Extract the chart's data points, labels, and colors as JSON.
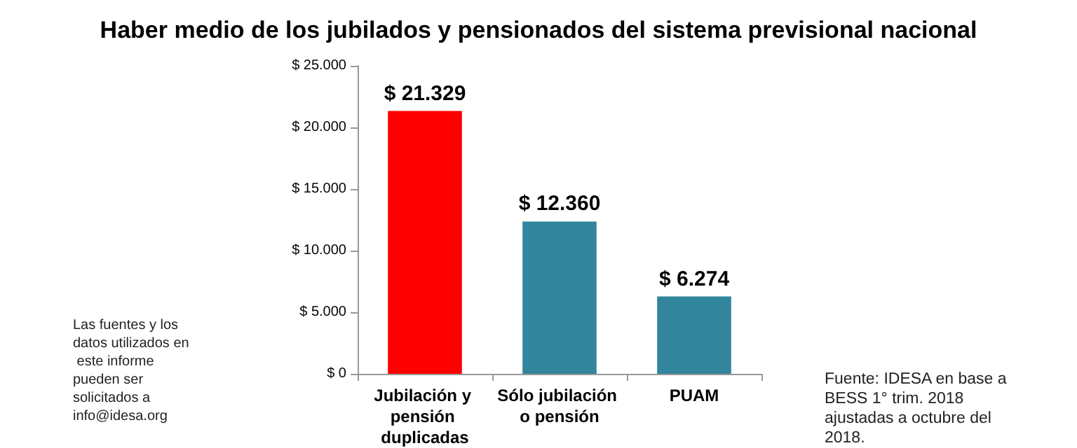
{
  "chart_data": {
    "type": "bar",
    "title": "Haber medio de los jubilados y pensionados del sistema previsional nacional",
    "categories": [
      "Jubilación y pensión duplicadas",
      "Sólo jubilación o pensión",
      "PUAM"
    ],
    "values": [
      21329,
      12360,
      6274
    ],
    "colors": [
      "#ff0000",
      "#31859c",
      "#31859c"
    ],
    "value_labels": [
      "$ 21.329",
      "$ 12.360",
      "$ 6.274"
    ],
    "ylim": [
      0,
      25000
    ],
    "yticks": [
      {
        "value": 0,
        "label": "$ 0"
      },
      {
        "value": 5000,
        "label": "$ 5.000"
      },
      {
        "value": 10000,
        "label": "$ 10.000"
      },
      {
        "value": 15000,
        "label": "$ 15.000"
      },
      {
        "value": 20000,
        "label": "$ 20.000"
      },
      {
        "value": 25000,
        "label": "$ 25.000"
      }
    ],
    "grid": false,
    "annotations": [
      "Las fuentes y los datos utilizados en este informe pueden ser solicitados a info@idesa.org",
      "Fuente: IDESA en base a BESS 1° trim. 2018 ajustadas a octubre del 2018."
    ]
  }
}
